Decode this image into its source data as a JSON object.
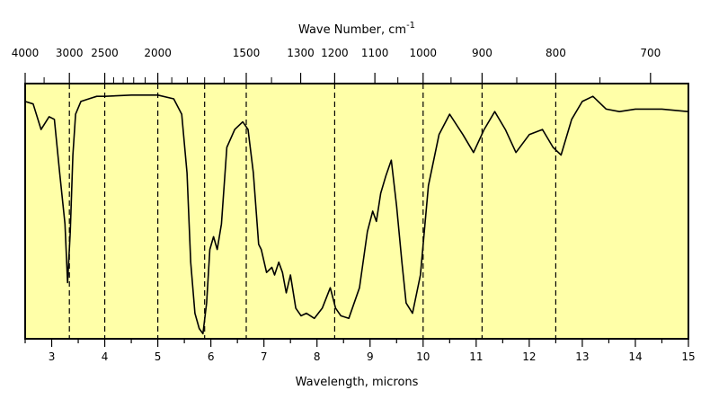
{
  "chart_data": {
    "type": "line",
    "title": "",
    "xlabel": "Wavelength, microns",
    "x2label_main": "Wave Number, cm",
    "x2label_sup": "-1",
    "ylabel": "",
    "xlim": [
      2.5,
      15
    ],
    "grid": "vertical dashed lines",
    "background_color": "#ffffa8",
    "line_color": "#000000",
    "x_ticks": [
      3,
      4,
      5,
      6,
      7,
      8,
      9,
      10,
      11,
      12,
      13,
      14,
      15
    ],
    "x2_labeled_ticks": [
      4000,
      3000,
      2500,
      2000,
      1500,
      1300,
      1200,
      1100,
      1000,
      900,
      800,
      700
    ],
    "x2_minor_ticks": [
      3500,
      2400,
      2300,
      2200,
      2100,
      1900,
      1800,
      1700,
      1600,
      1400,
      1050,
      950,
      850,
      750
    ],
    "dashed_reference_wavenumbers": [
      3000,
      2500,
      2000,
      1700,
      1500,
      1200,
      1000,
      900,
      800
    ],
    "series": [
      {
        "name": "",
        "x": [
          2.5,
          2.65,
          2.8,
          2.95,
          3.05,
          3.15,
          3.25,
          3.3,
          3.35,
          3.4,
          3.45,
          3.55,
          3.7,
          3.85,
          4.0,
          4.5,
          5.0,
          5.3,
          5.45,
          5.55,
          5.62,
          5.7,
          5.78,
          5.85,
          5.92,
          5.98,
          6.05,
          6.12,
          6.2,
          6.3,
          6.45,
          6.6,
          6.7,
          6.8,
          6.9,
          6.95,
          7.05,
          7.15,
          7.2,
          7.28,
          7.35,
          7.42,
          7.5,
          7.6,
          7.7,
          7.8,
          7.95,
          8.1,
          8.25,
          8.35,
          8.45,
          8.6,
          8.8,
          8.95,
          9.05,
          9.12,
          9.2,
          9.3,
          9.4,
          9.5,
          9.6,
          9.68,
          9.8,
          9.95,
          10.1,
          10.3,
          10.5,
          10.75,
          10.95,
          11.15,
          11.35,
          11.55,
          11.75,
          12.0,
          12.25,
          12.45,
          12.6,
          12.8,
          13.0,
          13.2,
          13.45,
          13.7,
          14.0,
          14.5,
          15.0
        ],
        "y": [
          93,
          92,
          82,
          87,
          86,
          65,
          45,
          22,
          42,
          72,
          88,
          93,
          94,
          95,
          95,
          95.5,
          95.5,
          94,
          88,
          65,
          30,
          10,
          4,
          2,
          14,
          35,
          40,
          35,
          45,
          75,
          82,
          85,
          82,
          65,
          37,
          35,
          26,
          28,
          25,
          30,
          26,
          18,
          25,
          12,
          9,
          10,
          8,
          12,
          20,
          12,
          9,
          8,
          20,
          42,
          50,
          46,
          57,
          64,
          70,
          52,
          30,
          14,
          10,
          25,
          60,
          80,
          88,
          80,
          73,
          82,
          89,
          82,
          73,
          80,
          82,
          75,
          72,
          86,
          93,
          95,
          90,
          89,
          90,
          90,
          89
        ]
      }
    ]
  }
}
